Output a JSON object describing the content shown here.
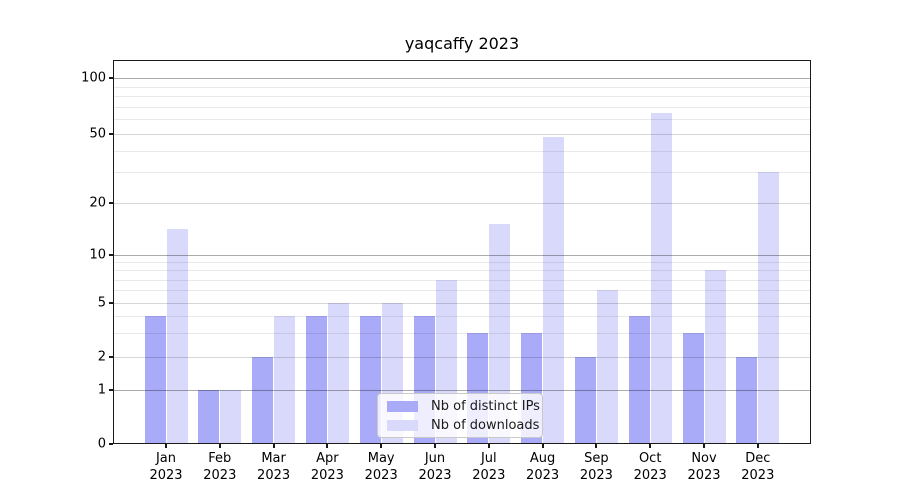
{
  "chart_data": {
    "type": "bar",
    "title": "yaqcaffy 2023",
    "categories": [
      "Jan 2023",
      "Feb 2023",
      "Mar 2023",
      "Apr 2023",
      "May 2023",
      "Jun 2023",
      "Jul 2023",
      "Aug 2023",
      "Sep 2023",
      "Oct 2023",
      "Nov 2023",
      "Dec 2023"
    ],
    "x_tick_month": [
      "Jan",
      "Feb",
      "Mar",
      "Apr",
      "May",
      "Jun",
      "Jul",
      "Aug",
      "Sep",
      "Oct",
      "Nov",
      "Dec"
    ],
    "x_tick_year": "2023",
    "series": [
      {
        "name": "Nb of distinct IPs",
        "color": "#a9aaf8",
        "values": [
          4,
          1,
          2,
          4,
          4,
          4,
          3,
          3,
          2,
          4,
          3,
          2
        ]
      },
      {
        "name": "Nb of downloads",
        "color": "#d9dafb",
        "values": [
          14,
          1,
          4,
          5,
          5,
          7,
          15,
          48,
          6,
          65,
          8,
          30
        ]
      }
    ],
    "y_axis": {
      "scale": "log-above-1 with linear 0-1 segment",
      "labeled_ticks": [
        0,
        1,
        2,
        5,
        10,
        20,
        50,
        100
      ],
      "minor_ticks": [
        3,
        4,
        6,
        7,
        8,
        9,
        30,
        40,
        60,
        70,
        80,
        90
      ],
      "tick_position_fractions": {
        "0": 1.0,
        "1": 0.8605,
        "2": 0.7736,
        "5": 0.6331,
        "10": 0.5074,
        "20": 0.3713,
        "50": 0.1925,
        "100": 0.0476
      }
    },
    "grid": true,
    "legend_position": "lower center",
    "colors": {
      "decade_gridline": "rgba(0,0,0,0.33)",
      "labeled_gridline": "rgba(0,0,0,0.16)",
      "minor_gridline": "rgba(0,0,0,0.085)"
    }
  }
}
